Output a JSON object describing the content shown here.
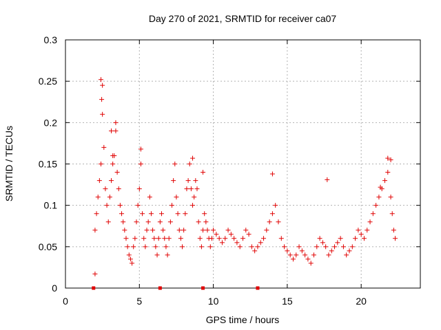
{
  "chart_data": {
    "type": "scatter",
    "title": "Day 270 of 2021, SRMTID for receiver ca07",
    "xlabel": "GPS time / hours",
    "ylabel": "SRMTID / TECUs",
    "xlim": [
      0,
      24
    ],
    "ylim": [
      0,
      0.3
    ],
    "xticks": [
      0,
      5,
      10,
      15,
      20
    ],
    "xtick_labels": [
      "0",
      "5",
      "10",
      "15",
      "20"
    ],
    "yticks": [
      0,
      0.05,
      0.1,
      0.15,
      0.2,
      0.25,
      0.3
    ],
    "ytick_labels": [
      "0",
      "0.05",
      "0.1",
      "0.15",
      "0.2",
      "0.25",
      "0.3"
    ],
    "grid": true,
    "marker": "+",
    "series_color": "#e00000",
    "baseline_markers_x": [
      1.9,
      6.4,
      9.3,
      13.0
    ],
    "points_x": [
      2.0,
      2.0,
      2.1,
      2.2,
      2.3,
      2.4,
      2.5,
      2.6,
      2.7,
      2.8,
      2.9,
      3.0,
      3.1,
      3.2,
      3.3,
      3.4,
      3.5,
      3.6,
      3.7,
      3.8,
      3.9,
      4.0,
      4.1,
      4.2,
      4.3,
      4.4,
      4.5,
      4.6,
      4.7,
      4.8,
      4.9,
      5.0,
      5.1,
      5.2,
      5.3,
      5.4,
      5.5,
      5.6,
      5.7,
      5.8,
      5.9,
      6.0,
      6.1,
      6.2,
      6.3,
      6.4,
      6.5,
      6.6,
      6.7,
      6.8,
      6.9,
      7.0,
      7.1,
      7.2,
      7.3,
      7.4,
      7.5,
      7.6,
      7.7,
      7.8,
      7.9,
      8.0,
      8.1,
      8.2,
      8.3,
      8.4,
      8.5,
      8.6,
      8.7,
      8.8,
      8.9,
      9.0,
      9.1,
      9.2,
      9.3,
      9.4,
      9.5,
      9.6,
      9.7,
      9.8,
      9.9,
      10.0,
      10.2,
      10.4,
      10.6,
      10.8,
      11.0,
      11.2,
      11.4,
      11.6,
      11.8,
      12.0,
      12.2,
      12.4,
      12.6,
      12.8,
      13.0,
      13.2,
      13.4,
      13.6,
      13.8,
      14.0,
      14.2,
      14.4,
      14.6,
      14.8,
      15.0,
      15.2,
      15.4,
      15.6,
      15.8,
      16.0,
      16.2,
      16.4,
      16.6,
      16.8,
      17.0,
      17.2,
      17.4,
      17.6,
      17.8,
      18.0,
      18.2,
      18.4,
      18.6,
      18.8,
      19.0,
      19.2,
      19.4,
      19.6,
      19.8,
      20.0,
      20.2,
      20.4,
      20.6,
      20.8,
      21.0,
      21.2,
      21.4,
      21.6,
      21.8,
      22.0,
      22.1,
      22.2,
      22.3,
      3.4,
      2.4,
      2.5,
      3.1,
      3.2,
      2.45,
      5.1,
      8.6,
      9.3,
      14.0,
      17.7,
      21.8,
      22.0,
      21.3
    ],
    "points_y": [
      0.017,
      0.07,
      0.09,
      0.11,
      0.13,
      0.15,
      0.21,
      0.17,
      0.12,
      0.1,
      0.08,
      0.11,
      0.13,
      0.15,
      0.16,
      0.19,
      0.14,
      0.12,
      0.1,
      0.09,
      0.08,
      0.07,
      0.06,
      0.05,
      0.04,
      0.035,
      0.03,
      0.05,
      0.06,
      0.08,
      0.1,
      0.12,
      0.15,
      0.09,
      0.06,
      0.05,
      0.07,
      0.08,
      0.11,
      0.09,
      0.07,
      0.06,
      0.05,
      0.04,
      0.06,
      0.08,
      0.09,
      0.07,
      0.06,
      0.05,
      0.04,
      0.06,
      0.08,
      0.1,
      0.13,
      0.15,
      0.11,
      0.09,
      0.07,
      0.06,
      0.05,
      0.07,
      0.09,
      0.12,
      0.13,
      0.15,
      0.12,
      0.1,
      0.11,
      0.13,
      0.12,
      0.08,
      0.06,
      0.05,
      0.07,
      0.09,
      0.08,
      0.07,
      0.06,
      0.05,
      0.06,
      0.07,
      0.065,
      0.06,
      0.055,
      0.06,
      0.07,
      0.065,
      0.06,
      0.055,
      0.05,
      0.06,
      0.07,
      0.065,
      0.05,
      0.045,
      0.05,
      0.055,
      0.06,
      0.07,
      0.08,
      0.09,
      0.1,
      0.08,
      0.06,
      0.05,
      0.045,
      0.04,
      0.035,
      0.04,
      0.05,
      0.045,
      0.04,
      0.035,
      0.03,
      0.04,
      0.05,
      0.06,
      0.055,
      0.05,
      0.04,
      0.045,
      0.05,
      0.055,
      0.06,
      0.05,
      0.04,
      0.045,
      0.05,
      0.06,
      0.07,
      0.065,
      0.06,
      0.07,
      0.08,
      0.09,
      0.1,
      0.11,
      0.12,
      0.13,
      0.14,
      0.11,
      0.09,
      0.07,
      0.06,
      0.2,
      0.252,
      0.245,
      0.19,
      0.16,
      0.228,
      0.168,
      0.157,
      0.14,
      0.138,
      0.131,
      0.157,
      0.155,
      0.122
    ]
  }
}
